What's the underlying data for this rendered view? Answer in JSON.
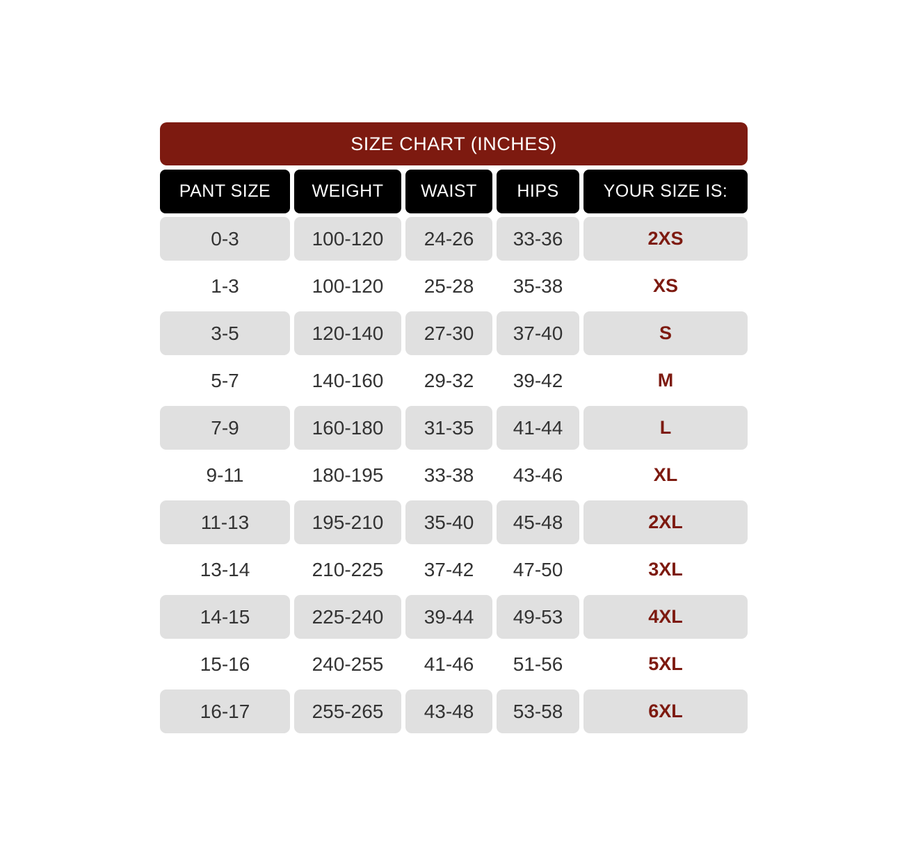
{
  "title": "SIZE CHART (INCHES)",
  "headers": [
    "PANT SIZE",
    "WEIGHT",
    "WAIST",
    "HIPS",
    "YOUR SIZE IS:"
  ],
  "rows": [
    [
      "0-3",
      "100-120",
      "24-26",
      "33-36",
      "2XS"
    ],
    [
      "1-3",
      "100-120",
      "25-28",
      "35-38",
      "XS"
    ],
    [
      "3-5",
      "120-140",
      "27-30",
      "37-40",
      "S"
    ],
    [
      "5-7",
      "140-160",
      "29-32",
      "39-42",
      "M"
    ],
    [
      "7-9",
      "160-180",
      "31-35",
      "41-44",
      "L"
    ],
    [
      "9-11",
      "180-195",
      "33-38",
      "43-46",
      "XL"
    ],
    [
      "11-13",
      "195-210",
      "35-40",
      "45-48",
      "2XL"
    ],
    [
      "13-14",
      "210-225",
      "37-42",
      "47-50",
      "3XL"
    ],
    [
      "14-15",
      "225-240",
      "39-44",
      "49-53",
      "4XL"
    ],
    [
      "15-16",
      "240-255",
      "41-46",
      "51-56",
      "5XL"
    ],
    [
      "16-17",
      "255-265",
      "43-48",
      "53-58",
      "6XL"
    ]
  ],
  "colors": {
    "title_bg": "#7d1a10",
    "header_bg": "#000000",
    "row_shade": "#e0e0e0",
    "size_text": "#7d1a10"
  }
}
